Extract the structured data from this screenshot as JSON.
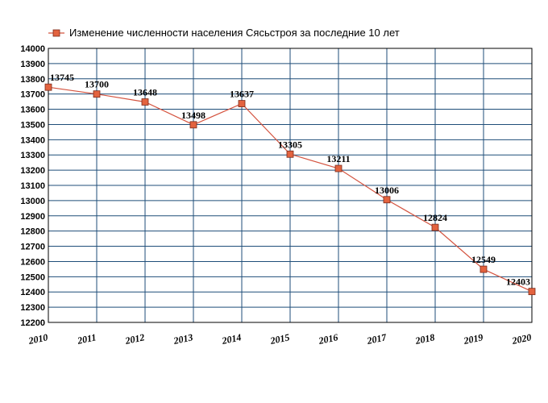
{
  "chart_data": {
    "type": "line",
    "title": "Изменение численности населения Сясьстроя за последние 10 лет",
    "x": [
      "2010",
      "2011",
      "2012",
      "2013",
      "2014",
      "2015",
      "2016",
      "2017",
      "2018",
      "2019",
      "2020"
    ],
    "series": [
      {
        "name": "Изменение численности населения Сясьстроя за последние 10 лет",
        "values": [
          13745,
          13700,
          13648,
          13498,
          13637,
          13305,
          13211,
          13006,
          12824,
          12549,
          12403
        ],
        "color": "#d4533f",
        "marker_color": "#e3633f"
      }
    ],
    "ylim": [
      12200,
      14000
    ],
    "ystep": 100,
    "grid": true,
    "grid_color": "#1f4e79",
    "legend_position": "top",
    "xlabel": "",
    "ylabel": ""
  }
}
